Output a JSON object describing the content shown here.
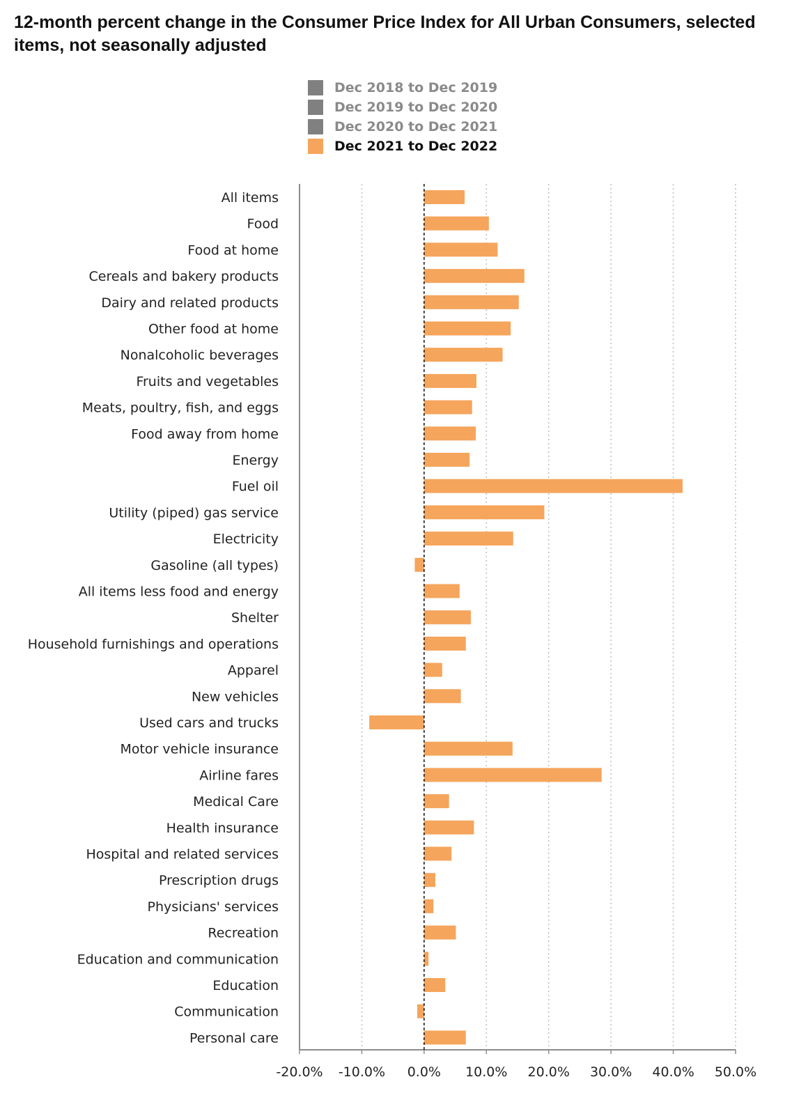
{
  "chart_data": {
    "type": "bar",
    "orientation": "horizontal",
    "title": "12-month percent change in the Consumer Price Index for All Urban Consumers, selected items, not seasonally adjusted",
    "legend": [
      {
        "label": "Dec 2018 to Dec 2019",
        "color": "#808080",
        "active": false
      },
      {
        "label": "Dec 2019 to Dec 2020",
        "color": "#808080",
        "active": false
      },
      {
        "label": "Dec 2020 to Dec 2021",
        "color": "#808080",
        "active": false
      },
      {
        "label": "Dec 2021 to Dec 2022",
        "color": "#F5A55C",
        "active": true
      }
    ],
    "legend_position": "top",
    "series_name": "Dec 2021 to Dec 2022",
    "bar_color": "#F5A55C",
    "categories": [
      "All items",
      "Food",
      "Food at home",
      "Cereals and bakery products",
      "Dairy and related products",
      "Other food at home",
      "Nonalcoholic beverages",
      "Fruits and vegetables",
      "Meats, poultry, fish, and eggs",
      "Food away from home",
      "Energy",
      "Fuel oil",
      "Utility (piped) gas service",
      "Electricity",
      "Gasoline (all types)",
      "All items less food and energy",
      "Shelter",
      "Household furnishings and operations",
      "Apparel",
      "New vehicles",
      "Used cars and trucks",
      "Motor vehicle insurance",
      "Airline fares",
      "Medical Care",
      "Health insurance",
      "Hospital and related services",
      "Prescription drugs",
      "Physicians' services",
      "Recreation",
      "Education and communication",
      "Education",
      "Communication",
      "Personal care"
    ],
    "values": [
      6.5,
      10.4,
      11.8,
      16.1,
      15.2,
      13.9,
      12.6,
      8.4,
      7.7,
      8.3,
      7.3,
      41.5,
      19.3,
      14.3,
      -1.5,
      5.7,
      7.5,
      6.7,
      2.9,
      5.9,
      -8.8,
      14.2,
      28.5,
      4.0,
      8.0,
      4.4,
      1.8,
      1.5,
      5.1,
      0.7,
      3.4,
      -1.1,
      6.7
    ],
    "xlim": [
      -20,
      50
    ],
    "xticks": [
      -20,
      -10,
      0,
      10,
      20,
      30,
      40,
      50
    ],
    "xtick_labels": [
      "-20.0%",
      "-10.0%",
      "0.0%",
      "10.0%",
      "20.0%",
      "30.0%",
      "40.0%",
      "50.0%"
    ],
    "xlabel": "",
    "ylabel": "",
    "grid": "vertical dotted"
  }
}
